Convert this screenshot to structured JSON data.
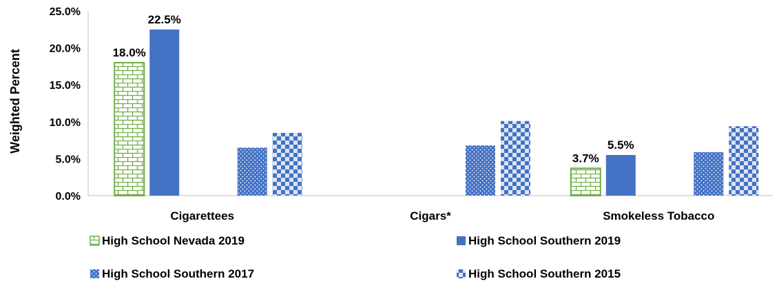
{
  "chart_data": {
    "type": "bar",
    "title": "",
    "xlabel": "",
    "ylabel": "Weighted Percent",
    "ylim": [
      0,
      25
    ],
    "yticks": [
      "0.0%",
      "5.0%",
      "10.0%",
      "15.0%",
      "20.0%",
      "25.0%"
    ],
    "grid": false,
    "legend_position": "bottom",
    "categories": [
      "Cigarettees",
      "Cigars*",
      "Smokeless Tobacco"
    ],
    "series": [
      {
        "name": "High School Nevada 2019",
        "values": [
          18.0,
          null,
          3.7
        ],
        "labels": [
          "18.0%",
          "",
          "3.7%"
        ],
        "color": "#70ad47",
        "pattern": "brick"
      },
      {
        "name": "High School Southern 2019",
        "values": [
          22.5,
          null,
          5.5
        ],
        "labels": [
          "22.5%",
          "",
          "5.5%"
        ],
        "color": "#4472c4",
        "pattern": "solid"
      },
      {
        "name": "High School Southern 2017",
        "values": [
          6.5,
          6.8,
          5.9
        ],
        "labels": [
          "",
          "",
          ""
        ],
        "color": "#4472c4",
        "pattern": "dots"
      },
      {
        "name": "High School Southern 2015",
        "values": [
          8.5,
          10.1,
          9.4
        ],
        "labels": [
          "",
          "",
          ""
        ],
        "color": "#4472c4",
        "pattern": "checker"
      }
    ]
  }
}
